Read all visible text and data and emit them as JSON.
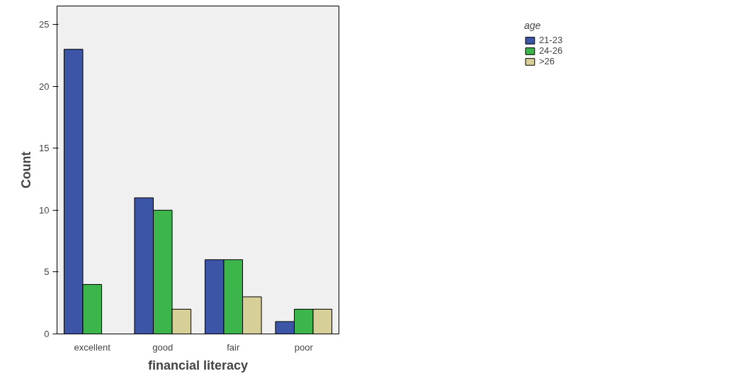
{
  "chart_data": {
    "type": "bar",
    "xlabel": "financial literacy",
    "ylabel": "Count",
    "legend_title": "age",
    "categories": [
      "excellent",
      "good",
      "fair",
      "poor"
    ],
    "series": [
      {
        "name": "21-23",
        "color": "#3d55a6",
        "values": [
          23,
          11,
          6,
          1
        ]
      },
      {
        "name": "24-26",
        "color": "#3cb54a",
        "values": [
          4,
          10,
          6,
          2
        ]
      },
      {
        "name": ">26",
        "color": "#d6cf98",
        "values": [
          null,
          2,
          3,
          2
        ]
      }
    ],
    "ylim": [
      0,
      26.5
    ],
    "yticks": [
      0,
      5,
      10,
      15,
      20,
      25
    ],
    "grid": false,
    "legend": "top right"
  }
}
